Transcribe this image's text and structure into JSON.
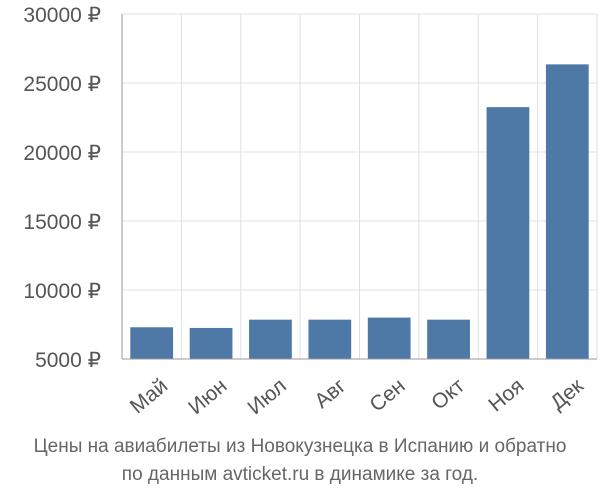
{
  "chart_data": {
    "type": "bar",
    "categories": [
      "Май",
      "Июн",
      "Июл",
      "Авг",
      "Сен",
      "Окт",
      "Ноя",
      "Дек"
    ],
    "values": [
      7300,
      7250,
      7850,
      7850,
      8000,
      7850,
      23250,
      26350
    ],
    "yticks": [
      "5000 ₽",
      "10000 ₽",
      "15000 ₽",
      "20000 ₽",
      "25000 ₽",
      "30000 ₽"
    ],
    "ytick_values": [
      5000,
      10000,
      15000,
      20000,
      25000,
      30000
    ],
    "ylim": [
      5000,
      30000
    ],
    "grid": true,
    "bar_color": "#4e79a7",
    "grid_color": "#e0e0e0",
    "caption_lines": [
      "Цены на авиабилеты из Новокузнецка в Испанию и обратно",
      "по данным avticket.ru в динамике за год."
    ]
  }
}
